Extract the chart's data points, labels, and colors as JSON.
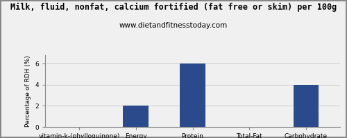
{
  "title": "Milk, fluid, nonfat, calcium fortified (fat free or skim) per 100g",
  "subtitle": "www.dietandfitnesstoday.com",
  "categories": [
    "vitamin-k-(phylloquinone)",
    "Energy",
    "Protein",
    "Total-Fat",
    "Carbohydrate"
  ],
  "values": [
    0,
    2.0,
    6.0,
    0,
    4.0
  ],
  "bar_color": "#2b4a8b",
  "ylabel": "Percentage of RDH (%)",
  "ylim": [
    0,
    6.8
  ],
  "yticks": [
    0,
    2,
    4,
    6
  ],
  "background_color": "#f0f0f0",
  "title_fontsize": 8.5,
  "subtitle_fontsize": 7.5,
  "tick_fontsize": 6.5,
  "ylabel_fontsize": 6.5,
  "bar_width": 0.45
}
